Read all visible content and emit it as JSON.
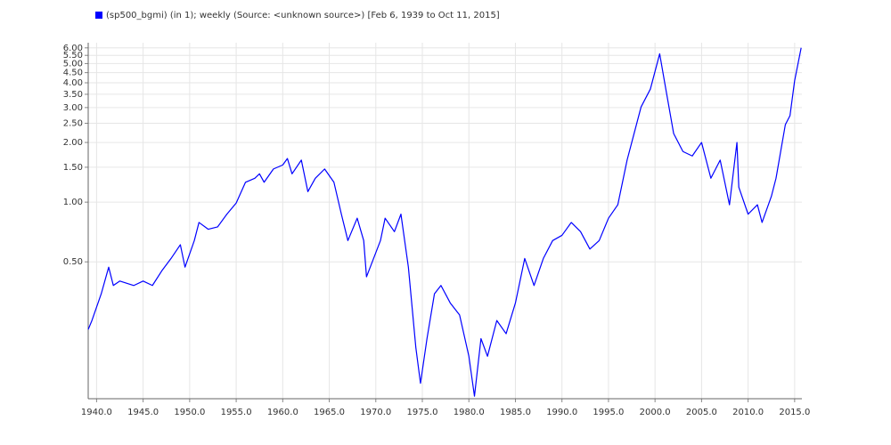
{
  "chart_data": {
    "type": "line",
    "log_y": true,
    "grid": true,
    "legend": "top-left",
    "x": [
      1939.1,
      1939.5,
      1940.5,
      1941.3,
      1941.8,
      1942.5,
      1944,
      1945,
      1946,
      1947,
      1948,
      1949,
      1949.5,
      1950.5,
      1951,
      1952,
      1953,
      1954,
      1955,
      1956,
      1957,
      1957.5,
      1958,
      1959,
      1960,
      1960.5,
      1961,
      1962,
      1962.7,
      1963.5,
      1964.5,
      1965.5,
      1966.3,
      1967,
      1968,
      1968.7,
      1969,
      1970.5,
      1971,
      1972,
      1972.7,
      1973.5,
      1974.3,
      1974.8,
      1975.5,
      1976.3,
      1977,
      1978,
      1979,
      1980,
      1980.6,
      1981.3,
      1982,
      1983,
      1984,
      1985,
      1986,
      1987,
      1988,
      1989,
      1990,
      1991,
      1992,
      1993,
      1994,
      1995,
      1996,
      1997,
      1998,
      1998.5,
      1999.5,
      2000.5,
      2001,
      2002,
      2003,
      2004,
      2005,
      2006,
      2007,
      2008,
      2008.8,
      2009,
      2010,
      2011,
      2011.5,
      2012.5,
      2013,
      2014,
      2014.5,
      2015,
      2015.7
    ],
    "series": [
      {
        "name": "(sp500_bgmi) (in 1); weekly (Source: <unknown source>) [Feb 6, 1939 to Oct 11, 2015]",
        "color": "#0000ff",
        "values": [
          0.228,
          0.253,
          0.345,
          0.47,
          0.38,
          0.4,
          0.38,
          0.4,
          0.38,
          0.45,
          0.52,
          0.61,
          0.47,
          0.64,
          0.79,
          0.73,
          0.75,
          0.87,
          0.99,
          1.26,
          1.32,
          1.39,
          1.26,
          1.47,
          1.54,
          1.66,
          1.39,
          1.63,
          1.13,
          1.32,
          1.47,
          1.26,
          0.87,
          0.64,
          0.83,
          0.64,
          0.42,
          0.64,
          0.83,
          0.71,
          0.87,
          0.47,
          0.185,
          0.122,
          0.205,
          0.345,
          0.38,
          0.31,
          0.27,
          0.167,
          0.105,
          0.205,
          0.167,
          0.253,
          0.217,
          0.31,
          0.52,
          0.38,
          0.52,
          0.64,
          0.68,
          0.79,
          0.71,
          0.58,
          0.64,
          0.83,
          0.97,
          1.63,
          2.46,
          3.02,
          3.72,
          5.6,
          4.1,
          2.22,
          1.8,
          1.71,
          2.0,
          1.32,
          1.63,
          0.97,
          2.0,
          1.19,
          0.87,
          0.97,
          0.79,
          1.07,
          1.32,
          2.46,
          2.73,
          4.1,
          6.0
        ]
      }
    ],
    "xlim": [
      1939.1,
      2015.78
    ],
    "ylim": [
      0.102,
      6.37
    ],
    "xticks": [
      {
        "value": 1940,
        "label": "1940.0"
      },
      {
        "value": 1945,
        "label": "1945.0"
      },
      {
        "value": 1950,
        "label": "1950.0"
      },
      {
        "value": 1955,
        "label": "1955.0"
      },
      {
        "value": 1960,
        "label": "1960.0"
      },
      {
        "value": 1965,
        "label": "1965.0"
      },
      {
        "value": 1970,
        "label": "1970.0"
      },
      {
        "value": 1975,
        "label": "1975.0"
      },
      {
        "value": 1980,
        "label": "1980.0"
      },
      {
        "value": 1985,
        "label": "1985.0"
      },
      {
        "value": 1990,
        "label": "1990.0"
      },
      {
        "value": 1995,
        "label": "1995.0"
      },
      {
        "value": 2000,
        "label": "2000.0"
      },
      {
        "value": 2005,
        "label": "2005.0"
      },
      {
        "value": 2010,
        "label": "2010.0"
      },
      {
        "value": 2015,
        "label": "2015.0"
      }
    ],
    "yticks": [
      {
        "value": 0.5,
        "label": "0.50"
      },
      {
        "value": 1,
        "label": "1.00"
      },
      {
        "value": 1.5,
        "label": "1.50"
      },
      {
        "value": 2,
        "label": "2.00"
      },
      {
        "value": 2.5,
        "label": "2.50"
      },
      {
        "value": 3,
        "label": "3.00"
      },
      {
        "value": 3.5,
        "label": "3.50"
      },
      {
        "value": 4,
        "label": "4.00"
      },
      {
        "value": 4.5,
        "label": "4.50"
      },
      {
        "value": 5,
        "label": "5.00"
      },
      {
        "value": 5.5,
        "label": "5.50"
      },
      {
        "value": 6,
        "label": "6.00"
      }
    ]
  }
}
